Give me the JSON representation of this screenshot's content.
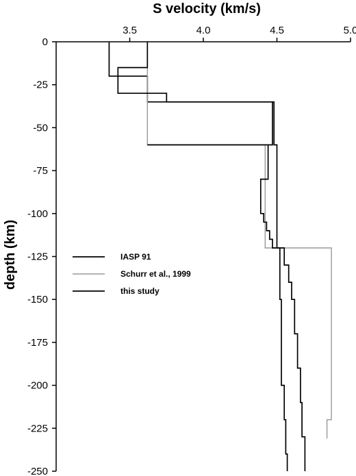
{
  "chart_data": {
    "type": "line",
    "title": "",
    "xlabel": "S velocity (km/s)",
    "ylabel": "depth (km)",
    "xlim": [
      3.0,
      5.0
    ],
    "ylim": [
      -250,
      0
    ],
    "x_axis_position": "top",
    "x_ticks": [
      3.5,
      4.0,
      4.5,
      5.0
    ],
    "x_tick_labels": [
      "3.5",
      "4.0",
      "4.5",
      "5.0"
    ],
    "y_ticks": [
      0,
      -25,
      -50,
      -75,
      -100,
      -125,
      -150,
      -175,
      -200,
      -225,
      -250
    ],
    "y_tick_labels": [
      "0",
      "-25",
      "-50",
      "-75",
      "-100",
      "-125",
      "-150",
      "-175",
      "-200",
      "-225",
      "-250"
    ],
    "grid": false,
    "legend_placement": "middle-left",
    "series": [
      {
        "name": "IASP 91",
        "color": "#000000",
        "points": [
          [
            3.36,
            0
          ],
          [
            3.36,
            -20
          ],
          [
            3.62,
            -20
          ],
          [
            3.62,
            -35
          ],
          [
            4.48,
            -35
          ],
          [
            4.48,
            -60
          ],
          [
            4.5,
            -60
          ],
          [
            4.5,
            -120
          ],
          [
            4.52,
            -120
          ],
          [
            4.52,
            -150
          ],
          [
            4.53,
            -150
          ],
          [
            4.53,
            -200
          ],
          [
            4.55,
            -200
          ],
          [
            4.55,
            -220
          ],
          [
            4.56,
            -220
          ],
          [
            4.56,
            -240
          ],
          [
            4.57,
            -240
          ],
          [
            4.57,
            -250
          ]
        ]
      },
      {
        "name": "Schurr et al., 1999",
        "color": "#999999",
        "points": [
          [
            3.62,
            0
          ],
          [
            3.62,
            -60
          ],
          [
            4.42,
            -60
          ],
          [
            4.42,
            -120
          ],
          [
            4.87,
            -120
          ],
          [
            4.87,
            -220
          ],
          [
            4.84,
            -220
          ],
          [
            4.84,
            -231
          ]
        ]
      },
      {
        "name": "this study",
        "color": "#000000",
        "points": [
          [
            3.62,
            0
          ],
          [
            3.62,
            -15
          ],
          [
            3.42,
            -15
          ],
          [
            3.42,
            -30
          ],
          [
            3.75,
            -30
          ],
          [
            3.75,
            -35
          ],
          [
            4.47,
            -35
          ],
          [
            4.47,
            -60
          ],
          [
            3.62,
            -60
          ],
          [
            3.62,
            -60
          ],
          [
            4.44,
            -60
          ],
          [
            4.44,
            -80
          ],
          [
            4.39,
            -80
          ],
          [
            4.39,
            -100
          ],
          [
            4.41,
            -100
          ],
          [
            4.41,
            -105
          ],
          [
            4.43,
            -105
          ],
          [
            4.43,
            -110
          ],
          [
            4.45,
            -110
          ],
          [
            4.45,
            -115
          ],
          [
            4.47,
            -115
          ],
          [
            4.47,
            -120
          ],
          [
            4.55,
            -120
          ],
          [
            4.55,
            -130
          ],
          [
            4.58,
            -130
          ],
          [
            4.58,
            -140
          ],
          [
            4.6,
            -140
          ],
          [
            4.6,
            -150
          ],
          [
            4.62,
            -150
          ],
          [
            4.62,
            -170
          ],
          [
            4.64,
            -170
          ],
          [
            4.64,
            -190
          ],
          [
            4.66,
            -190
          ],
          [
            4.66,
            -210
          ],
          [
            4.67,
            -210
          ],
          [
            4.67,
            -230
          ],
          [
            4.69,
            -230
          ],
          [
            4.69,
            -250
          ]
        ]
      }
    ]
  }
}
